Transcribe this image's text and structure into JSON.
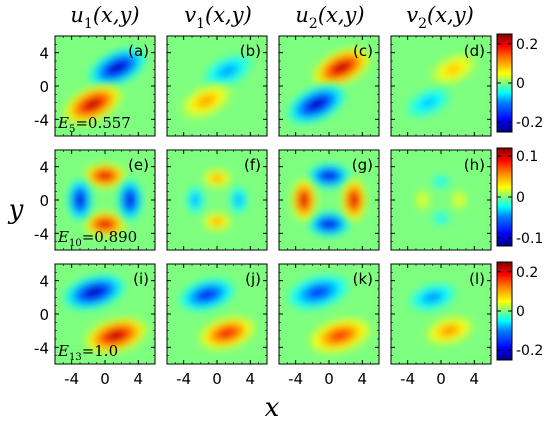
{
  "column_titles": [
    {
      "base": "u",
      "sub": "1",
      "args": "(x,y)"
    },
    {
      "base": "v",
      "sub": "1",
      "args": "(x,y)"
    },
    {
      "base": "u",
      "sub": "2",
      "args": "(x,y)"
    },
    {
      "base": "v",
      "sub": "2",
      "args": "(x,y)"
    }
  ],
  "axis_labels": {
    "x": "x",
    "y": "y"
  },
  "tick_labels": {
    "x": [
      "-4",
      "0",
      "4"
    ],
    "y": [
      "4",
      "0",
      "-4"
    ]
  },
  "colors": {
    "colormap": [
      "#00007f",
      "#0000ff",
      "#007fff",
      "#00ffff",
      "#7fff7f",
      "#ffff00",
      "#ff7f00",
      "#ff0000",
      "#7f0000"
    ],
    "background_field": "#7fff7f",
    "frame": "#000000"
  },
  "chart_data": [
    {
      "type": "heatmap",
      "row": 1,
      "energy_label": {
        "base": "E",
        "sub": "5",
        "value": "=0.557"
      },
      "colorbar": {
        "ticks": [
          "0.2",
          "0",
          "-0.2"
        ],
        "range": [
          -0.25,
          0.25
        ]
      },
      "panels": [
        {
          "label": "(a)",
          "component": "u1",
          "amp": 0.24
        },
        {
          "label": "(b)",
          "component": "v1",
          "amp": 0.12
        },
        {
          "label": "(c)",
          "component": "u2",
          "amp": 0.24
        },
        {
          "label": "(d)",
          "component": "v2",
          "amp": 0.1
        }
      ],
      "xlim": [
        -6,
        6
      ],
      "ylim": [
        -6,
        6
      ]
    },
    {
      "type": "heatmap",
      "row": 2,
      "energy_label": {
        "base": "E",
        "sub": "10",
        "value": "=0.890"
      },
      "colorbar": {
        "ticks": [
          "0.1",
          "0",
          "-0.1"
        ],
        "range": [
          -0.12,
          0.12
        ]
      },
      "panels": [
        {
          "label": "(e)",
          "component": "u1",
          "amp": 0.11
        },
        {
          "label": "(f)",
          "component": "v1",
          "amp": 0.06
        },
        {
          "label": "(g)",
          "component": "u2",
          "amp": 0.11
        },
        {
          "label": "(h)",
          "component": "v2",
          "amp": 0.035
        }
      ],
      "xlim": [
        -6,
        6
      ],
      "ylim": [
        -6,
        6
      ]
    },
    {
      "type": "heatmap",
      "row": 3,
      "energy_label": {
        "base": "E",
        "sub": "13",
        "value": "=1.0"
      },
      "colorbar": {
        "ticks": [
          "0.2",
          "0",
          "-0.2"
        ],
        "range": [
          -0.25,
          0.25
        ]
      },
      "panels": [
        {
          "label": "(i)",
          "component": "u1",
          "amp": 0.24
        },
        {
          "label": "(j)",
          "component": "v1",
          "amp": 0.2
        },
        {
          "label": "(k)",
          "component": "u2",
          "amp": 0.18
        },
        {
          "label": "(l)",
          "component": "v2",
          "amp": 0.13
        }
      ],
      "xlim": [
        -6,
        6
      ],
      "ylim": [
        -6,
        6
      ]
    }
  ]
}
